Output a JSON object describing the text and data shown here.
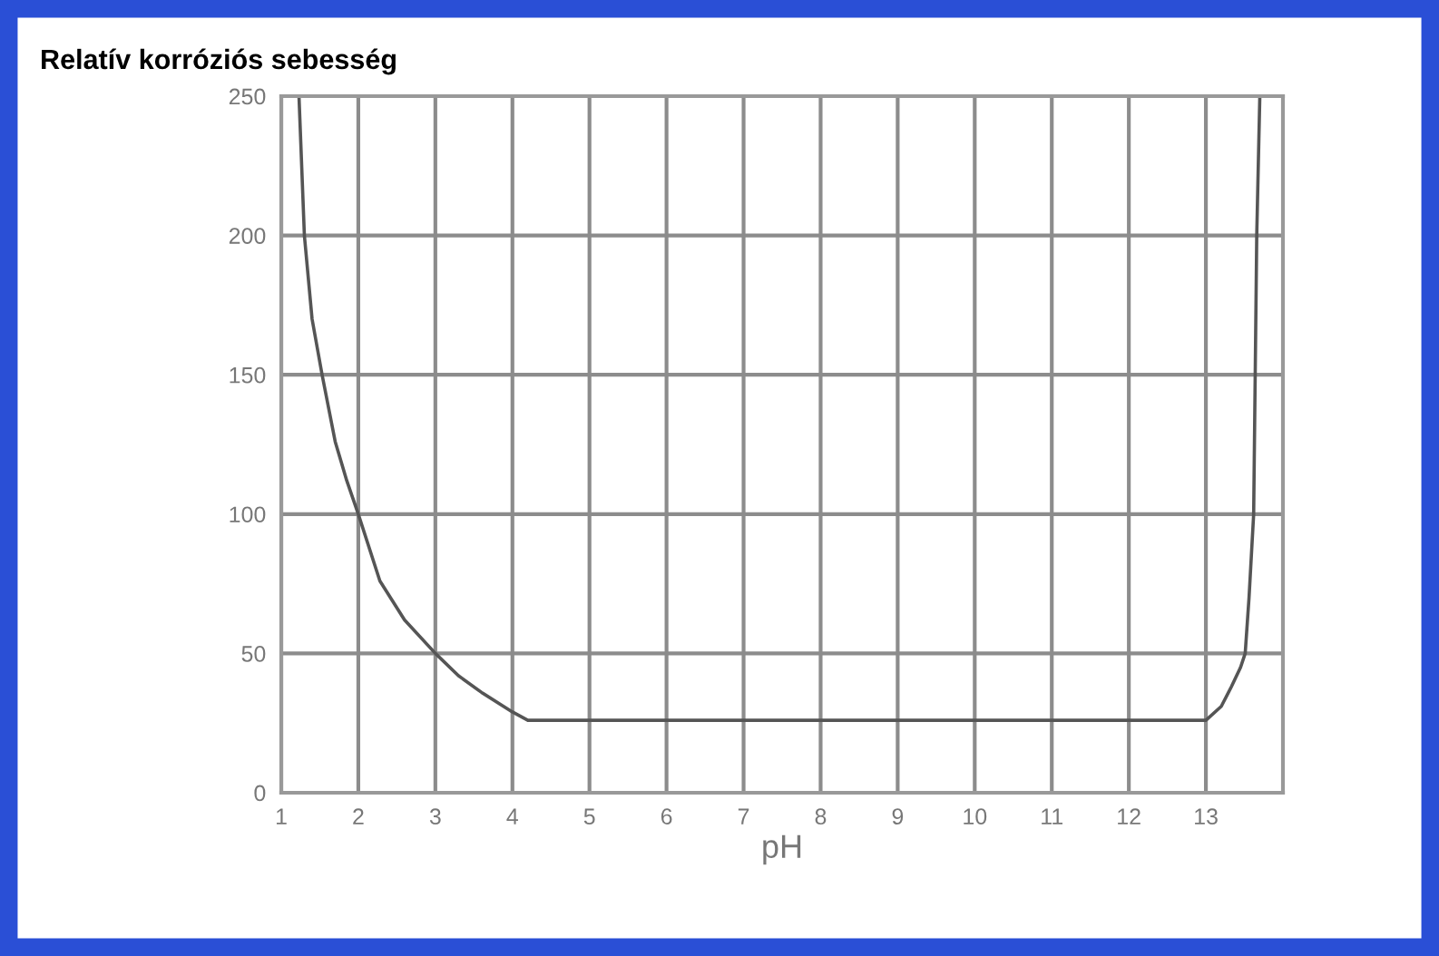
{
  "chart_data": {
    "type": "line",
    "title": "Relatív korróziós sebesség",
    "xlabel": "pH",
    "series": [
      {
        "color": "#555555",
        "x": [
          1.23,
          1.3,
          1.4,
          1.53,
          1.7,
          1.85,
          2.0,
          2.28,
          2.6,
          3.0,
          3.3,
          3.6,
          4.0,
          4.2,
          5,
          6,
          7,
          8,
          9,
          10,
          11,
          12,
          13.0,
          13.2,
          13.33,
          13.45,
          13.51,
          13.56,
          13.62,
          13.64,
          13.66,
          13.7
        ],
        "values": [
          250,
          200,
          170,
          150,
          126,
          112,
          100,
          76,
          62,
          50,
          42,
          36,
          29,
          26,
          26,
          26,
          26,
          26,
          26,
          26,
          26,
          26,
          26,
          31,
          38,
          45,
          50,
          70,
          100,
          150,
          200,
          250
        ]
      }
    ],
    "xlim": [
      1,
      14
    ],
    "ylim": [
      0,
      250
    ],
    "xticks": [
      1,
      2,
      3,
      4,
      5,
      6,
      7,
      8,
      9,
      10,
      11,
      12,
      13
    ],
    "yticks": [
      0,
      50,
      100,
      150,
      200,
      250
    ],
    "grid": true,
    "legend": false,
    "marker": "none",
    "line_style": "solid"
  }
}
